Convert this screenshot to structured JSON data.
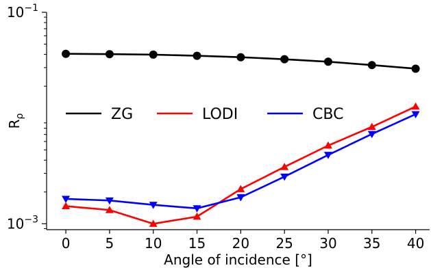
{
  "chart_data": {
    "type": "line",
    "xlabel": "Angle of incidence [°]",
    "ylabel": "R_ρ",
    "yscale": "log",
    "x": [
      0,
      5,
      10,
      15,
      20,
      25,
      30,
      35,
      40
    ],
    "xticks": [
      "0",
      "5",
      "10",
      "15",
      "20",
      "25",
      "30",
      "35",
      "40"
    ],
    "ylim": [
      0.00088,
      0.1
    ],
    "yticks": [
      {
        "value": 0.1,
        "base": "10",
        "exp": "−1"
      },
      {
        "value": 0.001,
        "base": "10",
        "exp": "−3"
      }
    ],
    "grid": false,
    "legend_position": "center, single row",
    "series": [
      {
        "name": "ZG",
        "color": "#000000",
        "marker": "circle",
        "values": [
          0.0405,
          0.0402,
          0.0398,
          0.0388,
          0.0376,
          0.036,
          0.0341,
          0.0317,
          0.0293
        ]
      },
      {
        "name": "LODI",
        "color": "#ff0000",
        "marker": "triangle-up",
        "values": [
          0.00147,
          0.00135,
          0.001,
          0.00117,
          0.00213,
          0.00345,
          0.0055,
          0.00825,
          0.01285
        ]
      },
      {
        "name": "CBC",
        "color": "#0000ff",
        "marker": "triangle-down",
        "values": [
          0.00172,
          0.00166,
          0.00151,
          0.0014,
          0.00178,
          0.00279,
          0.00448,
          0.00706,
          0.01087
        ]
      }
    ]
  }
}
